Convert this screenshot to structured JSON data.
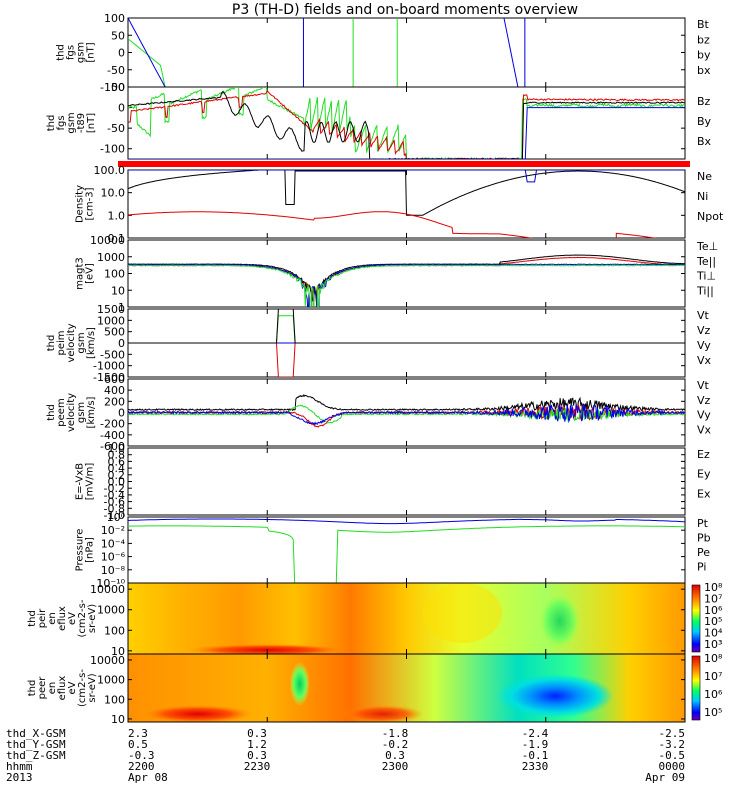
{
  "title": "P3 (TH-D) fields and on-board moments overview",
  "colors": {
    "black": "#000000",
    "red": "#e00000",
    "green": "#22dd22",
    "blue": "#0000e0"
  },
  "x_range": [
    "2013-04-08 22:00",
    "2013-04-09 00:00"
  ],
  "x_tick_minutes": [
    0,
    30,
    60,
    90,
    120
  ],
  "panels": [
    {
      "id": "fgs",
      "ylabel_lines": [
        "thd",
        "fgs",
        "gsm",
        "[nT]"
      ],
      "ylim": [
        -100,
        100
      ],
      "ticks": [
        100,
        50,
        0,
        -50,
        -100
      ],
      "tick_labels": [
        "100",
        "50",
        "0",
        "-50",
        "-100"
      ],
      "legend": [
        {
          "text": "Bt",
          "color": "black"
        },
        {
          "text": "bz",
          "color": "red"
        },
        {
          "text": "by",
          "color": "green"
        },
        {
          "text": "bx",
          "color": "blue"
        }
      ]
    },
    {
      "id": "t89",
      "ylabel_lines": [
        "thd",
        "fgs",
        "gsm",
        "-t89",
        "[nT]"
      ],
      "ylim": [
        -125,
        50
      ],
      "ticks": [
        -100,
        -50,
        0,
        50
      ],
      "tick_labels": [
        "-100",
        "-50",
        "0",
        "50"
      ],
      "legend": [
        {
          "text": "Bz",
          "color": "red"
        },
        {
          "text": "By",
          "color": "green"
        },
        {
          "text": "Bx",
          "color": "green"
        }
      ]
    },
    {
      "id": "density",
      "ylabel_lines": [
        "Density",
        "[cm-3]"
      ],
      "log": true,
      "ylim": [
        0.1,
        100
      ],
      "ticks": [
        100,
        10,
        1,
        0.1
      ],
      "tick_labels": [
        "100.0",
        "10.0",
        "1.0",
        "0.1"
      ],
      "legend": [
        {
          "text": "Ne",
          "color": "red"
        },
        {
          "text": "Ni",
          "color": "black"
        },
        {
          "text": "Npot",
          "color": "blue"
        }
      ]
    },
    {
      "id": "temp",
      "ylabel_lines": [
        "magt3",
        "[eV]"
      ],
      "log": true,
      "ylim": [
        1,
        10000
      ],
      "ticks": [
        10000,
        1000,
        100,
        10,
        1
      ],
      "tick_labels": [
        "10000",
        "1000",
        "100",
        "10",
        "1"
      ],
      "legend": [
        {
          "text": "Te⊥",
          "color": "red"
        },
        {
          "text": "Te||",
          "color": "black"
        },
        {
          "text": "Ti⊥",
          "color": "blue"
        },
        {
          "text": "Ti||",
          "color": "green"
        }
      ]
    },
    {
      "id": "peim",
      "ylabel_lines": [
        "thd",
        "peim",
        "velocity",
        "gsm",
        "[km/s]"
      ],
      "ylim": [
        -1500,
        1500
      ],
      "ticks": [
        1500,
        1000,
        500,
        0,
        -500,
        -1000,
        -1500
      ],
      "tick_labels": [
        "1500",
        "1000",
        "500",
        "0",
        "-500",
        "-1000",
        "-1500"
      ],
      "legend": [
        {
          "text": "Vt",
          "color": "black"
        },
        {
          "text": "Vz",
          "color": "red"
        },
        {
          "text": "Vy",
          "color": "green"
        },
        {
          "text": "Vx",
          "color": "blue"
        }
      ]
    },
    {
      "id": "peem",
      "ylabel_lines": [
        "thd",
        "peem",
        "velocity",
        "gsm",
        "[km/s]"
      ],
      "ylim": [
        -600,
        600
      ],
      "ticks": [
        600,
        400,
        200,
        0,
        -200,
        -400,
        -600
      ],
      "tick_labels": [
        "600",
        "400",
        "200",
        "0",
        "-200",
        "-400",
        "-600"
      ],
      "legend": [
        {
          "text": "Vt",
          "color": "black"
        },
        {
          "text": "Vz",
          "color": "red"
        },
        {
          "text": "Vy",
          "color": "green"
        },
        {
          "text": "Vx",
          "color": "blue"
        }
      ]
    },
    {
      "id": "exb",
      "ylabel_lines": [
        "E=-VxB",
        "[mV/m]"
      ],
      "ylim": [
        -1,
        1
      ],
      "ticks": [
        1,
        0.8,
        0.6,
        0.4,
        0.2,
        0,
        -0.2,
        -0.4,
        -0.6,
        -0.8,
        -1
      ],
      "tick_labels": [
        "1.0",
        "0.8",
        "0.6",
        "0.4",
        "0.2",
        "0.0",
        "-0.2",
        "-0.4",
        "-0.6",
        "-0.8",
        "-1.0"
      ],
      "legend": [
        {
          "text": "Ez",
          "color": "red"
        },
        {
          "text": "Ey",
          "color": "green"
        },
        {
          "text": "Ex",
          "color": "blue"
        }
      ]
    },
    {
      "id": "pressure",
      "ylabel_lines": [
        "Pressure",
        "[nPa]"
      ],
      "log": true,
      "ylim": [
        1e-10,
        1
      ],
      "ticks": [
        1,
        0.01,
        0.0001,
        1e-06,
        1e-08,
        1e-10
      ],
      "tick_labels": [
        "10⁰",
        "10⁻²",
        "10⁻⁴",
        "10⁻⁶",
        "10⁻⁸",
        "10⁻¹⁰"
      ],
      "legend": [
        {
          "text": "Pt",
          "color": "black"
        },
        {
          "text": "Pb",
          "color": "red"
        },
        {
          "text": "Pe",
          "color": "green"
        },
        {
          "text": "Pi",
          "color": "blue"
        }
      ]
    },
    {
      "id": "peir",
      "ylabel_lines": [
        "thd",
        "peir",
        "en",
        "eflux",
        "eV",
        "(cm2-s-",
        "sr-eV)"
      ],
      "log": true,
      "ylim": [
        7,
        20000
      ],
      "ticks": [
        10000,
        1000,
        100,
        10
      ],
      "tick_labels": [
        "10000",
        "1000",
        "100",
        "10"
      ],
      "colorbar_labels": [
        "10⁸",
        "10⁷",
        "10⁶",
        "10⁵",
        "10⁴",
        "10³"
      ]
    },
    {
      "id": "peer",
      "ylabel_lines": [
        "thd",
        "peer",
        "en",
        "eflux",
        "eV",
        "(cm2-s-",
        "sr-eV)"
      ],
      "log": true,
      "ylim": [
        7,
        20000
      ],
      "ticks": [
        10000,
        1000,
        100,
        10
      ],
      "tick_labels": [
        "10000",
        "1000",
        "100",
        "10"
      ],
      "colorbar_labels": [
        "10⁸",
        "10⁷",
        "10⁶",
        "10⁵"
      ]
    }
  ],
  "footer": {
    "rows": [
      {
        "label": "thd_X-GSM",
        "values": [
          "2.3",
          "0.3",
          "-1.8",
          "-2.4",
          "-2.5"
        ]
      },
      {
        "label": "thd_Y-GSM",
        "values": [
          "0.5",
          "1.2",
          "-0.2",
          "-1.9",
          "-3.2"
        ]
      },
      {
        "label": "thd_Z-GSM",
        "values": [
          "-0.3",
          "0.3",
          "0.3",
          "-0.1",
          "-0.5"
        ]
      },
      {
        "label": "hhmm",
        "values": [
          "2200",
          "2230",
          "2300",
          "2330",
          "0000"
        ]
      },
      {
        "label": "2013",
        "values": [
          "Apr 08",
          "",
          "",
          "",
          "Apr 09"
        ]
      }
    ]
  }
}
